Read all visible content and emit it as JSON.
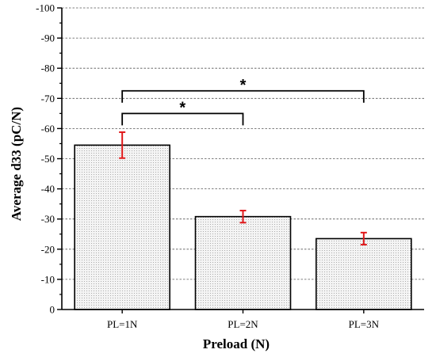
{
  "chart_data": {
    "type": "bar",
    "xlabel": "Preload (N)",
    "ylabel": "Average d33 (pC/N)",
    "categories": [
      "PL=1N",
      "PL=2N",
      "PL=3N"
    ],
    "values": [
      -54.5,
      -30.8,
      -23.5
    ],
    "error": [
      4.3,
      2.0,
      2.0
    ],
    "ylim": [
      0,
      -100
    ],
    "yticks": [
      "0",
      "-10",
      "-20",
      "-30",
      "-40",
      "-50",
      "-60",
      "-70",
      "-80",
      "-90",
      "-100"
    ],
    "ytick_values": [
      0,
      -10,
      -20,
      -30,
      -40,
      -50,
      -60,
      -70,
      -80,
      -90,
      -100
    ],
    "grid": true,
    "significance": [
      {
        "from": 0,
        "to": 1,
        "label": "*",
        "level": -65
      },
      {
        "from": 0,
        "to": 2,
        "label": "*",
        "level": -72.5
      }
    ],
    "colors": {
      "bar_fill": "#f2f2f2",
      "bar_dots": "#9a9a9a",
      "error_bar": "#e0191b",
      "grid": "#555555"
    }
  }
}
